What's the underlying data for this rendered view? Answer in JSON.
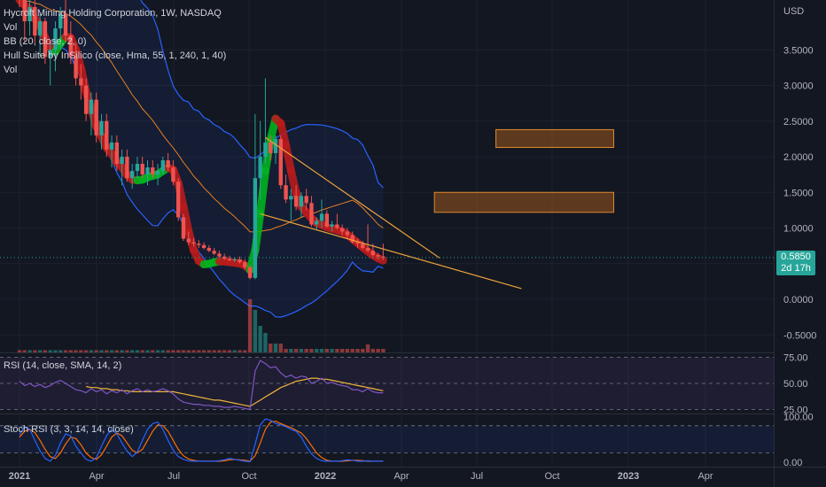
{
  "header": {
    "title_line": "Hycroft Mining Holding Corporation, 1W, NASDAQ",
    "indicators": [
      "Vol",
      "BB (20, close, 2, 0)",
      "Hull Suite by InSilico (close, Hma, 55, 1, 240, 1, 40)",
      "Vol"
    ]
  },
  "price_tag": {
    "price": "0.5850",
    "countdown": "2d 17h"
  },
  "colors": {
    "background": "#131722",
    "up": "#26a69a",
    "down": "#ef5350",
    "bb_band": "#2962ff",
    "bb_basis": "#e67e22",
    "hull_up": "#00b31e",
    "hull_down": "#b71c1c",
    "trendline": "#f0a33a",
    "zone": "#b8651c",
    "rsi": "#7e57c2",
    "rsi_ma": "#f0b43a",
    "stoch_k": "#2962ff",
    "stoch_d": "#ff6d00"
  },
  "chart_data": [
    {
      "type": "candlestick",
      "title": "Hycroft Mining Holding Corporation, 1W, NASDAQ",
      "yaxis_label": "USD",
      "y_ticks": [
        "3.5000",
        "3.0000",
        "2.5000",
        "2.0000",
        "1.5000",
        "1.0000",
        "0.5000",
        "0.0000",
        "-0.5000"
      ],
      "y_range": [
        -0.62,
        4.2
      ],
      "x_ticks": [
        "2021",
        "Apr",
        "Jul",
        "Oct",
        "2022",
        "Apr",
        "Jul",
        "Oct",
        "2023",
        "Apr"
      ],
      "x_range_weeks": [
        -1,
        116
      ],
      "candles": [
        [
          4.6,
          4.7,
          4.1,
          4.2
        ],
        [
          4.2,
          4.4,
          3.6,
          3.9
        ],
        [
          3.9,
          4.3,
          3.7,
          4.1
        ],
        [
          4.1,
          4.2,
          3.6,
          3.7
        ],
        [
          3.7,
          4.0,
          3.4,
          3.9
        ],
        [
          3.9,
          3.95,
          3.3,
          3.4
        ],
        [
          3.4,
          3.6,
          3.0,
          3.5
        ],
        [
          3.5,
          3.9,
          3.2,
          3.8
        ],
        [
          3.8,
          4.1,
          3.5,
          4.0
        ],
        [
          4.0,
          4.2,
          3.6,
          3.7
        ],
        [
          3.7,
          3.9,
          3.3,
          3.4
        ],
        [
          3.4,
          3.6,
          3.0,
          3.1
        ],
        [
          3.1,
          3.3,
          2.8,
          3.0
        ],
        [
          3.0,
          3.1,
          2.5,
          2.6
        ],
        [
          2.6,
          2.9,
          2.3,
          2.8
        ],
        [
          2.8,
          2.9,
          2.2,
          2.3
        ],
        [
          2.3,
          2.6,
          2.1,
          2.5
        ],
        [
          2.5,
          2.6,
          2.0,
          2.1
        ],
        [
          2.1,
          2.3,
          1.85,
          2.2
        ],
        [
          2.2,
          2.3,
          1.8,
          1.9
        ],
        [
          1.9,
          2.1,
          1.6,
          2.0
        ],
        [
          2.0,
          2.1,
          1.65,
          1.7
        ],
        [
          1.7,
          1.9,
          1.55,
          1.8
        ],
        [
          1.8,
          2.0,
          1.7,
          1.9
        ],
        [
          1.9,
          2.0,
          1.7,
          1.75
        ],
        [
          1.75,
          1.95,
          1.6,
          1.85
        ],
        [
          1.85,
          1.95,
          1.7,
          1.75
        ],
        [
          1.75,
          1.9,
          1.6,
          1.8
        ],
        [
          1.8,
          2.0,
          1.75,
          1.95
        ],
        [
          1.95,
          2.05,
          1.8,
          1.85
        ],
        [
          1.85,
          1.95,
          1.6,
          1.65
        ],
        [
          1.65,
          1.7,
          1.1,
          1.15
        ],
        [
          1.15,
          1.2,
          0.82,
          0.85
        ],
        [
          0.85,
          0.95,
          0.76,
          0.8
        ],
        [
          0.8,
          0.86,
          0.74,
          0.78
        ],
        [
          0.78,
          0.83,
          0.72,
          0.76
        ],
        [
          0.76,
          0.8,
          0.7,
          0.72
        ],
        [
          0.72,
          0.76,
          0.66,
          0.68
        ],
        [
          0.68,
          0.72,
          0.62,
          0.64
        ],
        [
          0.64,
          0.68,
          0.58,
          0.6
        ],
        [
          0.6,
          0.64,
          0.55,
          0.57
        ],
        [
          0.57,
          0.61,
          0.53,
          0.55
        ],
        [
          0.55,
          0.59,
          0.52,
          0.56
        ],
        [
          0.56,
          0.6,
          0.5,
          0.52
        ],
        [
          0.52,
          0.56,
          0.42,
          0.45
        ],
        [
          0.45,
          0.48,
          0.28,
          0.3
        ],
        [
          0.3,
          2.6,
          0.28,
          1.7
        ],
        [
          1.7,
          2.5,
          1.4,
          2.0
        ],
        [
          2.0,
          3.1,
          1.9,
          2.2
        ],
        [
          2.2,
          2.3,
          1.95,
          2.05
        ],
        [
          2.05,
          2.3,
          1.9,
          2.25
        ],
        [
          2.25,
          2.3,
          1.55,
          1.6
        ],
        [
          1.6,
          1.75,
          1.35,
          1.4
        ],
        [
          1.4,
          1.55,
          1.1,
          1.45
        ],
        [
          1.45,
          1.6,
          1.25,
          1.3
        ],
        [
          1.3,
          1.5,
          1.15,
          1.45
        ],
        [
          1.45,
          1.55,
          1.25,
          1.35
        ],
        [
          1.35,
          1.45,
          1.02,
          1.05
        ],
        [
          1.05,
          1.15,
          0.98,
          1.1
        ],
        [
          1.1,
          1.4,
          1.0,
          1.2
        ],
        [
          1.2,
          1.25,
          1.0,
          1.02
        ],
        [
          1.02,
          1.1,
          0.95,
          1.05
        ],
        [
          1.05,
          1.2,
          0.98,
          1.0
        ],
        [
          1.0,
          1.05,
          0.9,
          0.95
        ],
        [
          0.95,
          1.0,
          0.85,
          0.9
        ],
        [
          0.9,
          0.95,
          0.78,
          0.8
        ],
        [
          0.8,
          0.85,
          0.72,
          0.78
        ],
        [
          0.78,
          0.82,
          0.7,
          0.72
        ],
        [
          0.72,
          1.05,
          0.66,
          0.68
        ],
        [
          0.68,
          0.78,
          0.6,
          0.62
        ],
        [
          0.62,
          0.65,
          0.56,
          0.6
        ],
        [
          0.6,
          0.78,
          0.55,
          0.585
        ]
      ],
      "zones": [
        {
          "week_start": 93,
          "week_end": 116,
          "low": 2.13,
          "high": 2.38
        },
        {
          "week_start": 81,
          "week_end": 116,
          "low": 1.22,
          "high": 1.5
        }
      ],
      "trendlines": [
        {
          "from": [
            47,
            1.2
          ],
          "to": [
            98,
            0.15
          ]
        },
        {
          "from": [
            48,
            2.27
          ],
          "to": [
            82,
            0.58
          ]
        }
      ]
    },
    {
      "type": "line",
      "title": "RSI (14, close, SMA, 14, 2)",
      "y_ticks": [
        "75.00",
        "50.00",
        "25.00"
      ],
      "y_range": [
        22,
        78
      ],
      "series": [
        {
          "name": "RSI",
          "values": [
            52,
            48,
            50,
            47,
            49,
            46,
            48,
            51,
            53,
            50,
            47,
            44,
            43,
            41,
            45,
            42,
            44,
            40,
            43,
            41,
            44,
            40,
            43,
            45,
            42,
            44,
            42,
            43,
            45,
            43,
            40,
            35,
            32,
            31,
            30,
            30,
            29,
            29,
            28,
            28,
            27,
            27,
            28,
            27,
            26,
            25,
            62,
            72,
            69,
            65,
            66,
            60,
            56,
            58,
            55,
            57,
            56,
            50,
            52,
            55,
            50,
            51,
            49,
            48,
            47,
            44,
            44,
            42,
            45,
            42,
            41,
            41
          ]
        },
        {
          "name": "RSI-based MA",
          "values": [
            null,
            null,
            null,
            null,
            null,
            null,
            null,
            null,
            null,
            null,
            null,
            null,
            null,
            47,
            46,
            46,
            45,
            45,
            44,
            44,
            43,
            43,
            42,
            42,
            42,
            42,
            42,
            42,
            42,
            42,
            42,
            41,
            40,
            39,
            38,
            37,
            36,
            35,
            34,
            34,
            33,
            32,
            31,
            30,
            29,
            28,
            31,
            34,
            37,
            40,
            43,
            46,
            48,
            50,
            52,
            53,
            54,
            55,
            55,
            54,
            54,
            53,
            52,
            51,
            50,
            49,
            48,
            47,
            46,
            45,
            44,
            43
          ]
        }
      ]
    },
    {
      "type": "line",
      "title": "Stoch RSI (3, 3, 14, 14, close)",
      "y_ticks": [
        "100.00",
        "0.00"
      ],
      "y_range": [
        -8,
        105
      ],
      "series": [
        {
          "name": "K",
          "values": [
            60,
            78,
            72,
            48,
            25,
            8,
            2,
            15,
            42,
            62,
            58,
            35,
            20,
            6,
            2,
            10,
            35,
            58,
            72,
            62,
            42,
            24,
            12,
            22,
            48,
            72,
            85,
            88,
            72,
            48,
            26,
            12,
            6,
            3,
            2,
            2,
            2,
            2,
            2,
            3,
            5,
            8,
            6,
            4,
            2,
            1,
            40,
            82,
            95,
            92,
            85,
            82,
            78,
            72,
            68,
            55,
            35,
            18,
            8,
            3,
            2,
            2,
            2,
            3,
            5,
            4,
            2,
            2,
            3,
            2,
            2,
            2
          ]
        },
        {
          "name": "D",
          "values": [
            55,
            68,
            72,
            65,
            48,
            28,
            12,
            8,
            20,
            40,
            55,
            52,
            38,
            20,
            10,
            6,
            16,
            35,
            55,
            64,
            58,
            42,
            26,
            20,
            28,
            48,
            68,
            82,
            80,
            68,
            48,
            28,
            14,
            7,
            4,
            2,
            2,
            2,
            2,
            2,
            3,
            5,
            6,
            5,
            4,
            2,
            14,
            42,
            72,
            88,
            90,
            85,
            80,
            76,
            70,
            64,
            52,
            36,
            20,
            10,
            4,
            2,
            2,
            2,
            3,
            4,
            4,
            3,
            2,
            2,
            2,
            2
          ]
        }
      ]
    }
  ],
  "legends": {
    "rsi_label": "RSI (14, close, SMA, 14, 2)",
    "stoch_label": "Stoch RSI (3, 3, 14, 14, close)"
  }
}
